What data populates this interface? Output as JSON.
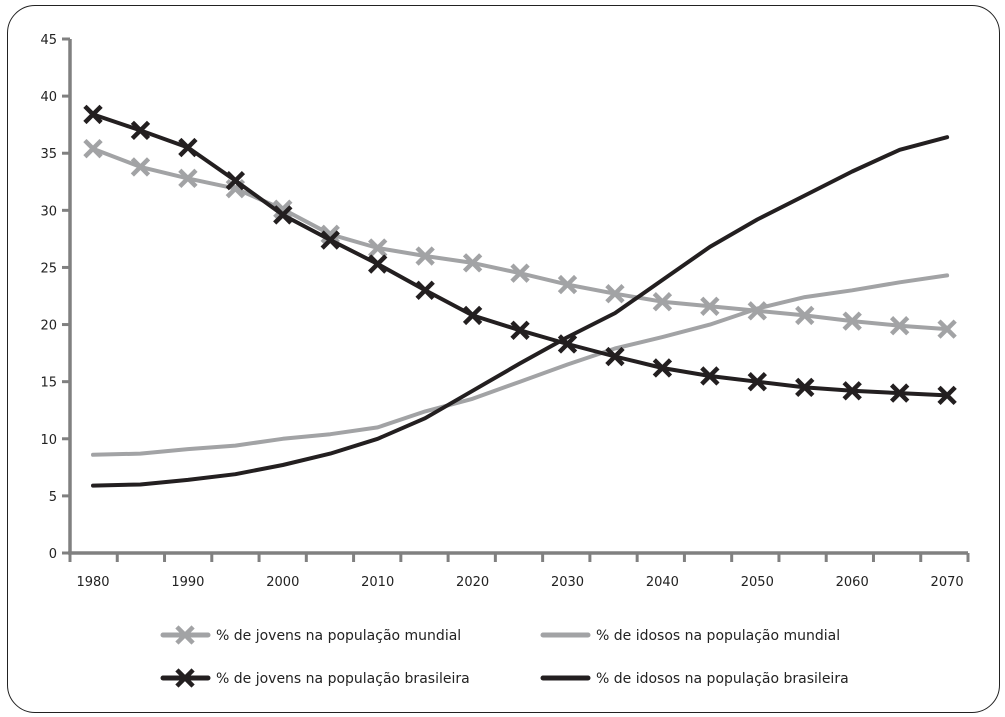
{
  "chart_data": {
    "type": "line",
    "title": "",
    "xlabel": "",
    "ylabel": "",
    "ylim": [
      0,
      45
    ],
    "xlim": [
      1975,
      2072
    ],
    "yticks": [
      0,
      5,
      10,
      15,
      20,
      25,
      30,
      35,
      40,
      45
    ],
    "xticks": [
      1980,
      1990,
      2000,
      2010,
      2020,
      2030,
      2040,
      2050,
      2060,
      2070
    ],
    "x": [
      1980,
      1985,
      1990,
      1995,
      2000,
      2005,
      2010,
      2015,
      2020,
      2025,
      2030,
      2035,
      2040,
      2045,
      2050,
      2055,
      2060,
      2065,
      2070
    ],
    "legend_position": "bottom",
    "series": [
      {
        "name": "% de jovens na população mundial",
        "color": "#a2a3a5",
        "marker": "x",
        "values": [
          35.4,
          33.8,
          32.8,
          31.9,
          30.1,
          27.9,
          26.7,
          26.0,
          25.4,
          24.5,
          23.5,
          22.7,
          22.0,
          21.6,
          21.2,
          20.8,
          20.3,
          19.9,
          19.6
        ]
      },
      {
        "name": "% de idosos na população mundial",
        "color": "#a2a3a5",
        "marker": "none",
        "values": [
          8.6,
          8.7,
          9.1,
          9.4,
          10.0,
          10.4,
          11.0,
          12.4,
          13.5,
          15.0,
          16.5,
          17.9,
          18.9,
          20.0,
          21.4,
          22.4,
          23.0,
          23.7,
          24.3
        ]
      },
      {
        "name": "% de jovens na população brasileira",
        "color": "#231f20",
        "marker": "x",
        "values": [
          38.4,
          37.0,
          35.5,
          32.6,
          29.6,
          27.4,
          25.3,
          23.0,
          20.8,
          19.5,
          18.3,
          17.2,
          16.2,
          15.5,
          15.0,
          14.5,
          14.2,
          14.0,
          13.8
        ]
      },
      {
        "name": "% de idosos na população brasileira",
        "color": "#231f20",
        "marker": "none",
        "values": [
          5.9,
          6.0,
          6.4,
          6.9,
          7.7,
          8.7,
          10.0,
          11.8,
          14.2,
          16.6,
          18.9,
          21.0,
          23.9,
          26.8,
          29.2,
          31.3,
          33.4,
          35.3,
          36.4
        ]
      }
    ]
  },
  "axis_color": "#808080"
}
